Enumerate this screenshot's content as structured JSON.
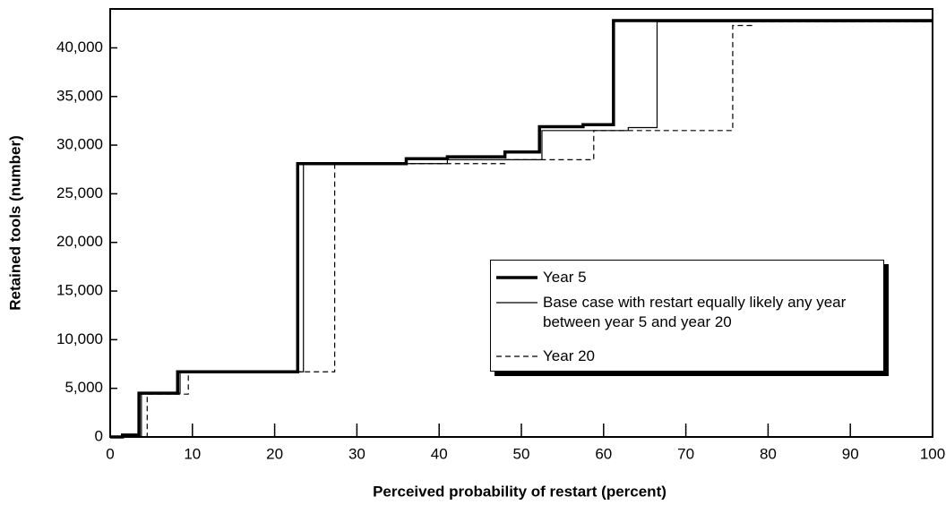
{
  "chart_data": {
    "type": "step",
    "x_label": "Perceived probability of restart (percent)",
    "y_label": "Retained tools (number)",
    "xlim": [
      0,
      100
    ],
    "xticks": [
      0,
      10,
      20,
      30,
      40,
      50,
      60,
      70,
      80,
      90,
      100
    ],
    "ylim": [
      0,
      44000
    ],
    "yticks": [
      0,
      {
        "value": 5000,
        "label": "5,000"
      },
      {
        "value": 10000,
        "label": "10,000"
      },
      {
        "value": 15000,
        "label": "15,000"
      },
      {
        "value": 20000,
        "label": "20,000"
      },
      {
        "value": 25000,
        "label": "25,000"
      },
      {
        "value": 30000,
        "label": "30,000"
      },
      {
        "value": 35000,
        "label": "35,000"
      },
      {
        "value": 40000,
        "label": "40,000"
      }
    ],
    "series": [
      {
        "name": "Year 5",
        "color": "#000000",
        "line_width": 3.5,
        "dash": "none",
        "x": [
          0,
          1.5,
          3.5,
          8.2,
          22.8,
          36,
          41,
          48,
          52.2,
          57.5,
          61.2,
          100
        ],
        "values": [
          0,
          200,
          4500,
          6700,
          28100,
          28600,
          28800,
          29300,
          31900,
          32100,
          42800,
          42800
        ]
      },
      {
        "name": "Base case with restart equally likely any year between year 5 and year 20",
        "color": "#000000",
        "line_width": 1.2,
        "dash": "none",
        "x": [
          0,
          3.8,
          8.5,
          23.5,
          41,
          52.5,
          63,
          66.5,
          100
        ],
        "values": [
          0,
          4500,
          6700,
          28100,
          28500,
          31500,
          31800,
          42700,
          42700
        ]
      },
      {
        "name": "Year 20",
        "color": "#000000",
        "line_width": 1.2,
        "dash": "6 4",
        "x": [
          0,
          4.5,
          9.5,
          27.3,
          48,
          58.8,
          75.7,
          78,
          100
        ],
        "values": [
          0,
          4400,
          6700,
          28100,
          28500,
          31500,
          42300,
          42700,
          42700
        ]
      }
    ]
  }
}
